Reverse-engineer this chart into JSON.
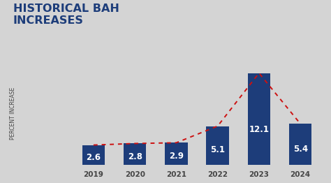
{
  "categories": [
    "2019",
    "2020",
    "2021",
    "2022",
    "2023",
    "2024"
  ],
  "values": [
    2.6,
    2.8,
    2.9,
    5.1,
    12.1,
    5.4
  ],
  "bar_color": "#1d3d7a",
  "background_color": "#d4d4d4",
  "title_line1": "HISTORICAL BAH",
  "title_line2": "INCREASES",
  "ylabel": "PERCENT INCREASE",
  "title_color": "#1d3d7a",
  "label_color": "#ffffff",
  "tick_color": "#444444",
  "dashed_line_color": "#cc1111",
  "ylim": [
    0,
    14.5
  ],
  "title_fontsize": 11.5,
  "label_fontsize": 8.5,
  "ylabel_fontsize": 5.5,
  "xtick_fontsize": 7.5,
  "bar_width": 0.55
}
